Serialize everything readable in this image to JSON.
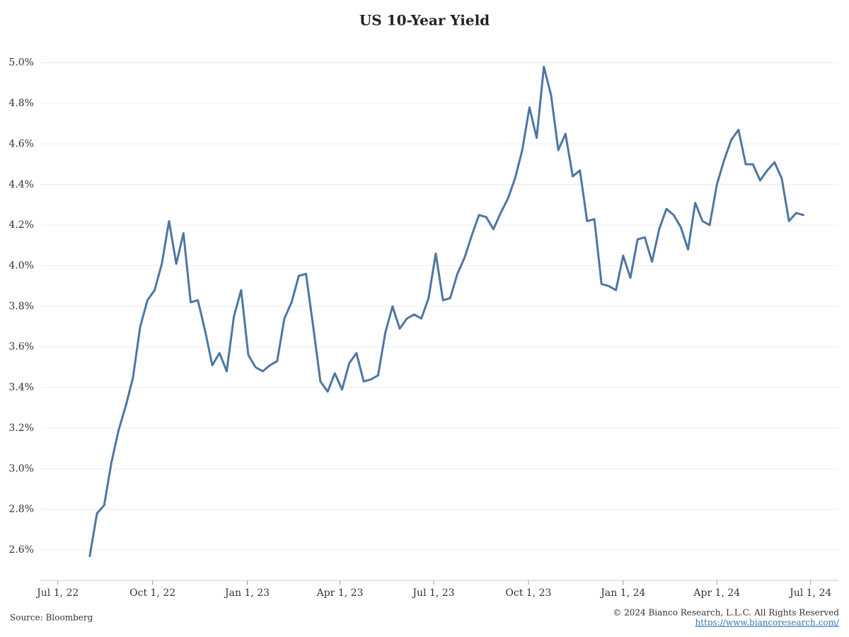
{
  "chart_data": {
    "type": "line",
    "title": "US 10-Year Yield",
    "source": "Source: Bloomberg",
    "credit": "© 2024 Bianco Research, L.L.C. All Rights Reserved",
    "link": "https://www.biancoresearch.com/",
    "grid": true,
    "xlim": [
      "2022-06-14",
      "2024-07-28"
    ],
    "xticks": [
      {
        "value": "2022-07-01",
        "label": "Jul 1, 22"
      },
      {
        "value": "2022-10-01",
        "label": "Oct 1, 22"
      },
      {
        "value": "2023-01-01",
        "label": "Jan 1, 23"
      },
      {
        "value": "2023-04-01",
        "label": "Apr 1, 23"
      },
      {
        "value": "2023-07-01",
        "label": "Jul 1, 23"
      },
      {
        "value": "2023-10-01",
        "label": "Oct 1, 23"
      },
      {
        "value": "2024-01-01",
        "label": "Jan 1, 24"
      },
      {
        "value": "2024-04-01",
        "label": "Apr 1, 24"
      },
      {
        "value": "2024-07-01",
        "label": "Jul 1, 24"
      }
    ],
    "ylim": [
      2.45,
      5.1
    ],
    "yticks": [
      {
        "value": 2.6,
        "label": "2.6%"
      },
      {
        "value": 2.8,
        "label": "2.8%"
      },
      {
        "value": 3.0,
        "label": "3.0%"
      },
      {
        "value": 3.2,
        "label": "3.2%"
      },
      {
        "value": 3.4,
        "label": "3.4%"
      },
      {
        "value": 3.6,
        "label": "3.6%"
      },
      {
        "value": 3.8,
        "label": "3.8%"
      },
      {
        "value": 4.0,
        "label": "4.0%"
      },
      {
        "value": 4.2,
        "label": "4.2%"
      },
      {
        "value": 4.4,
        "label": "4.4%"
      },
      {
        "value": 4.6,
        "label": "4.6%"
      },
      {
        "value": 4.8,
        "label": "4.8%"
      },
      {
        "value": 5.0,
        "label": "5.0%"
      }
    ],
    "x": [
      "2022-08-01",
      "2022-08-08",
      "2022-08-15",
      "2022-08-22",
      "2022-08-29",
      "2022-09-05",
      "2022-09-12",
      "2022-09-19",
      "2022-09-26",
      "2022-10-03",
      "2022-10-10",
      "2022-10-17",
      "2022-10-24",
      "2022-10-31",
      "2022-11-07",
      "2022-11-14",
      "2022-11-21",
      "2022-11-28",
      "2022-12-05",
      "2022-12-12",
      "2022-12-19",
      "2022-12-26",
      "2023-01-02",
      "2023-01-09",
      "2023-01-16",
      "2023-01-23",
      "2023-01-30",
      "2023-02-06",
      "2023-02-13",
      "2023-02-20",
      "2023-02-27",
      "2023-03-06",
      "2023-03-13",
      "2023-03-20",
      "2023-03-27",
      "2023-04-03",
      "2023-04-10",
      "2023-04-17",
      "2023-04-24",
      "2023-05-01",
      "2023-05-08",
      "2023-05-15",
      "2023-05-22",
      "2023-05-29",
      "2023-06-05",
      "2023-06-12",
      "2023-06-19",
      "2023-06-26",
      "2023-07-03",
      "2023-07-10",
      "2023-07-17",
      "2023-07-24",
      "2023-07-31",
      "2023-08-07",
      "2023-08-14",
      "2023-08-21",
      "2023-08-28",
      "2023-09-04",
      "2023-09-11",
      "2023-09-18",
      "2023-09-25",
      "2023-10-02",
      "2023-10-09",
      "2023-10-16",
      "2023-10-23",
      "2023-10-30",
      "2023-11-06",
      "2023-11-13",
      "2023-11-20",
      "2023-11-27",
      "2023-12-04",
      "2023-12-11",
      "2023-12-18",
      "2023-12-25",
      "2024-01-01",
      "2024-01-08",
      "2024-01-15",
      "2024-01-22",
      "2024-01-29",
      "2024-02-05",
      "2024-02-12",
      "2024-02-19",
      "2024-02-26",
      "2024-03-04",
      "2024-03-11",
      "2024-03-18",
      "2024-03-25",
      "2024-04-01",
      "2024-04-08",
      "2024-04-15",
      "2024-04-22",
      "2024-04-29",
      "2024-05-06",
      "2024-05-13",
      "2024-05-20",
      "2024-05-27",
      "2024-06-03",
      "2024-06-10",
      "2024-06-17",
      "2024-06-24"
    ],
    "series": [
      {
        "name": "US 10-Year Yield",
        "color": "#4e76a3",
        "values": [
          2.57,
          2.78,
          2.82,
          3.03,
          3.19,
          3.31,
          3.45,
          3.7,
          3.83,
          3.88,
          4.01,
          4.22,
          4.01,
          4.16,
          3.82,
          3.83,
          3.68,
          3.51,
          3.57,
          3.48,
          3.75,
          3.88,
          3.56,
          3.5,
          3.48,
          3.51,
          3.53,
          3.74,
          3.82,
          3.95,
          3.96,
          3.7,
          3.43,
          3.38,
          3.47,
          3.39,
          3.52,
          3.57,
          3.43,
          3.44,
          3.46,
          3.67,
          3.8,
          3.69,
          3.74,
          3.76,
          3.74,
          3.84,
          4.06,
          3.83,
          3.84,
          3.96,
          4.04,
          4.15,
          4.25,
          4.24,
          4.18,
          4.26,
          4.33,
          4.43,
          4.57,
          4.78,
          4.63,
          4.98,
          4.84,
          4.57,
          4.65,
          4.44,
          4.47,
          4.22,
          4.23,
          3.91,
          3.9,
          3.88,
          4.05,
          3.94,
          4.13,
          4.14,
          4.02,
          4.18,
          4.28,
          4.25,
          4.19,
          4.08,
          4.31,
          4.22,
          4.2,
          4.4,
          4.52,
          4.62,
          4.67,
          4.5,
          4.5,
          4.42,
          4.47,
          4.51,
          4.43,
          4.22,
          4.26,
          4.25
        ]
      }
    ]
  }
}
